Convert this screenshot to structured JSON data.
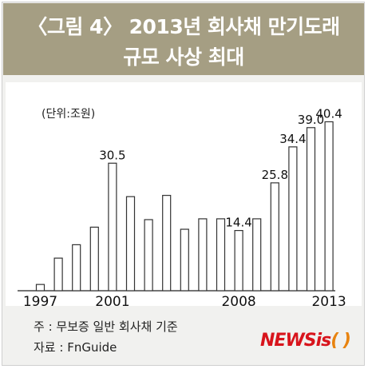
{
  "header": {
    "title_line1": "〈그림 4〉 2013년 회사채 만기도래",
    "title_line2": "규모 사상 최대"
  },
  "unit_label": "(단위:조원)",
  "notes": {
    "note": "주 : 무보증 일반 회사채 기준",
    "source": "자료 : FnGuide"
  },
  "logo": {
    "news": "NEWS",
    "is": "is",
    "paren": "( )"
  },
  "colors": {
    "header_bg": "#a59e83",
    "bar_fill": "#ffffff",
    "bar_stroke": "#333333"
  },
  "chart_data": {
    "type": "bar",
    "categories": [
      "1997",
      "1998",
      "1999",
      "2000",
      "2001",
      "2002",
      "2003",
      "2004",
      "2005",
      "2006",
      "2007",
      "2008",
      "2009",
      "2010",
      "2011",
      "2012",
      "2013"
    ],
    "values": [
      1.5,
      7.8,
      11.0,
      15.2,
      30.5,
      22.5,
      17.0,
      22.8,
      14.7,
      17.2,
      17.2,
      14.4,
      17.2,
      25.8,
      34.4,
      39.0,
      40.4
    ],
    "value_labels": {
      "2001": "30.5",
      "2008": "14.4",
      "2010": "25.8",
      "2011": "34.4",
      "2012": "39.0",
      "2013": "40.4"
    },
    "x_tick_labels": {
      "1997": "1997",
      "2001": "2001",
      "2008": "2008",
      "2013": "2013"
    },
    "ylim": [
      0,
      45
    ],
    "grid": false
  }
}
